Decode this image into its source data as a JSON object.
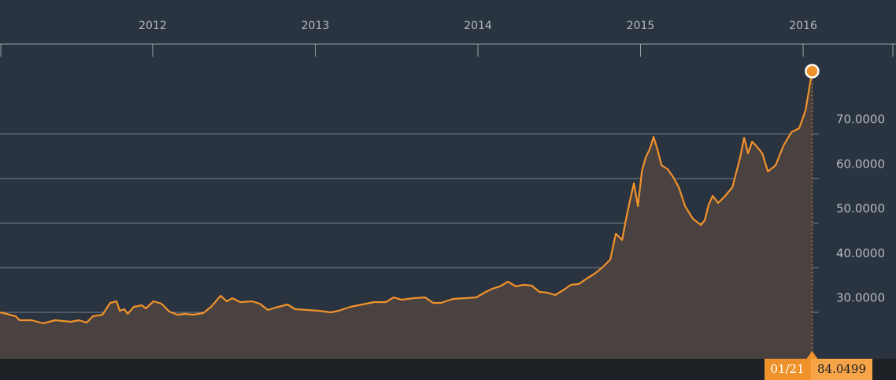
{
  "chart_data": {
    "type": "line",
    "x": [
      2011.061,
      2011.158,
      2011.182,
      2011.255,
      2011.327,
      2011.4,
      2011.497,
      2011.545,
      2011.594,
      2011.632,
      2011.691,
      2011.739,
      2011.778,
      2011.797,
      2011.826,
      2011.846,
      2011.884,
      2011.933,
      2011.957,
      2012.005,
      2012.054,
      2012.102,
      2012.151,
      2012.199,
      2012.247,
      2012.31,
      2012.359,
      2012.417,
      2012.456,
      2012.49,
      2012.538,
      2012.611,
      2012.659,
      2012.708,
      2012.756,
      2012.829,
      2012.877,
      2012.95,
      2013.022,
      2013.095,
      2013.143,
      2013.216,
      2013.289,
      2013.361,
      2013.434,
      2013.482,
      2013.531,
      2013.603,
      2013.676,
      2013.724,
      2013.773,
      2013.845,
      2013.918,
      2013.991,
      2014.039,
      2014.088,
      2014.136,
      2014.184,
      2014.233,
      2014.281,
      2014.33,
      2014.378,
      2014.427,
      2014.475,
      2014.523,
      2014.572,
      2014.62,
      2014.669,
      2014.717,
      2014.765,
      2014.814,
      2014.848,
      2014.887,
      2014.911,
      2014.935,
      2014.959,
      2014.984,
      2015.008,
      2015.032,
      2015.056,
      2015.08,
      2015.104,
      2015.129,
      2015.167,
      2015.201,
      2015.235,
      2015.274,
      2015.322,
      2015.371,
      2015.395,
      2015.419,
      2015.444,
      2015.477,
      2015.516,
      2015.565,
      2015.613,
      2015.637,
      2015.661,
      2015.686,
      2015.71,
      2015.749,
      2015.783,
      2015.831,
      2015.879,
      2015.928,
      2015.976,
      2016.015,
      2016.055
    ],
    "values": [
      30.0,
      29.12,
      28.24,
      28.24,
      27.53,
      28.24,
      27.89,
      28.24,
      27.71,
      29.12,
      29.47,
      32.12,
      32.47,
      30.35,
      30.71,
      29.65,
      31.24,
      31.59,
      30.88,
      32.47,
      31.94,
      30.18,
      29.47,
      29.65,
      29.47,
      29.83,
      31.24,
      33.7,
      32.47,
      33.18,
      32.29,
      32.47,
      31.94,
      30.53,
      31.06,
      31.77,
      30.71,
      30.53,
      30.35,
      30.0,
      30.35,
      31.24,
      31.77,
      32.29,
      32.29,
      33.35,
      32.82,
      33.18,
      33.35,
      32.12,
      32.12,
      33.0,
      33.18,
      33.35,
      34.41,
      35.29,
      35.82,
      36.88,
      35.82,
      36.17,
      36.0,
      34.59,
      34.41,
      33.88,
      34.94,
      36.17,
      36.35,
      37.58,
      38.64,
      40.05,
      41.81,
      47.63,
      46.22,
      50.98,
      55.04,
      58.92,
      53.8,
      61.56,
      64.73,
      66.5,
      69.32,
      66.5,
      62.97,
      62.09,
      60.33,
      58.03,
      53.8,
      50.98,
      49.57,
      50.63,
      54.16,
      56.1,
      54.51,
      55.92,
      58.03,
      64.73,
      69.14,
      65.62,
      68.26,
      67.38,
      65.62,
      61.56,
      62.97,
      67.38,
      70.38,
      71.26,
      75.31,
      84.0499
    ],
    "color": "#f0922b",
    "xlim": [
      2011.061,
      2016.571
    ],
    "xticks": [
      2012,
      2013,
      2014,
      2015,
      2016
    ],
    "ylim": [
      19.6,
      100
    ],
    "yticks": [
      {
        "value": 30,
        "label": "30.0000"
      },
      {
        "value": 40,
        "label": "40.0000"
      },
      {
        "value": 50,
        "label": "50.0000"
      },
      {
        "value": 60,
        "label": "60.0000"
      },
      {
        "value": 70,
        "label": "70.0000"
      }
    ],
    "grid": true,
    "annotation": "01/21"
  }
}
